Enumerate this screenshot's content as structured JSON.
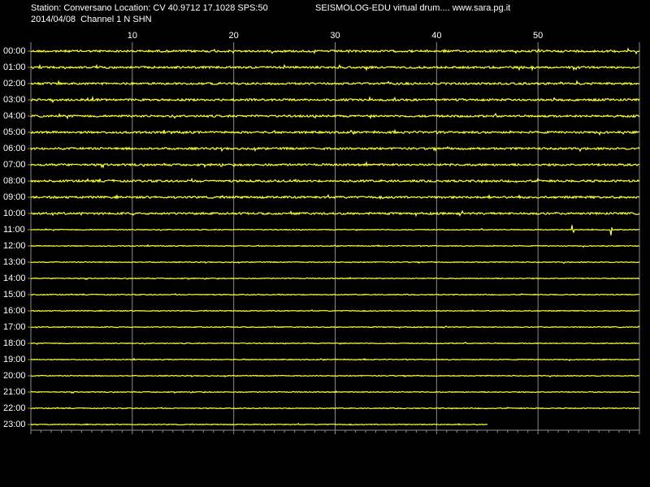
{
  "header": {
    "station": "Station: Conversano Location: CV 40.9712 17.1028 SPS:50",
    "app": "SEISMOLOG-EDU virtual drum.... www.sara.pg.it",
    "date_channel": "2014/04/08  Channel 1 N SHN"
  },
  "minute_ticks": [
    "10",
    "20",
    "30",
    "40",
    "50"
  ],
  "hours": [
    "00:00",
    "01:00",
    "02:00",
    "03:00",
    "04:00",
    "05:00",
    "06:00",
    "07:00",
    "08:00",
    "09:00",
    "10:00",
    "11:00",
    "12:00",
    "13:00",
    "14:00",
    "15:00",
    "16:00",
    "17:00",
    "18:00",
    "19:00",
    "20:00",
    "21:00",
    "22:00",
    "23:00"
  ]
}
